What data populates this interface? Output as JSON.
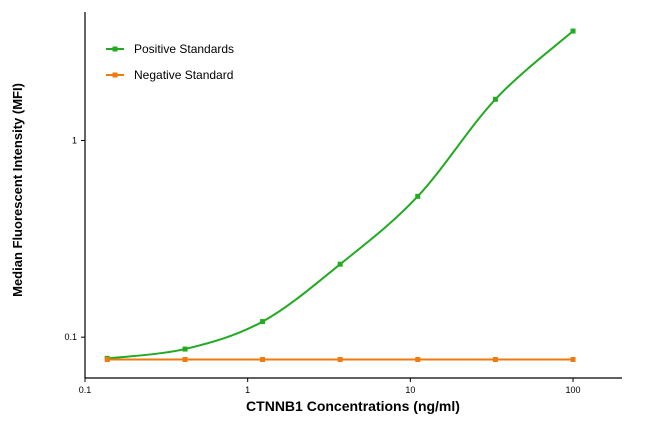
{
  "chart_data": {
    "type": "line",
    "title": "",
    "xlabel": "CTNNB1 Concentrations (ng/ml)",
    "ylabel": "Median Fluorescent Intensity (MFI)",
    "x_scale": "log",
    "y_scale": "log",
    "xlim": [
      0.1,
      200
    ],
    "ylim": [
      0.062,
      4.5
    ],
    "x_ticks": [
      {
        "value": 0.1,
        "label": "0.1"
      },
      {
        "value": 1,
        "label": "1"
      },
      {
        "value": 10,
        "label": "10"
      },
      {
        "value": 100,
        "label": "100"
      }
    ],
    "y_ticks": [
      {
        "value": 0.1,
        "label": "0.1"
      },
      {
        "value": 1,
        "label": "1"
      }
    ],
    "grid": false,
    "legend_position": "top-left",
    "series": [
      {
        "name": "Positive Standards",
        "color": "#22aa22",
        "x": [
          0.137,
          0.412,
          1.235,
          3.704,
          11.11,
          33.33,
          100
        ],
        "y": [
          0.078,
          0.087,
          0.12,
          0.235,
          0.52,
          1.62,
          3.6
        ]
      },
      {
        "name": "Negative Standard",
        "color": "#ee7a10",
        "x": [
          0.137,
          0.412,
          1.235,
          3.704,
          11.11,
          33.33,
          100
        ],
        "y": [
          0.077,
          0.077,
          0.077,
          0.077,
          0.077,
          0.077,
          0.077
        ]
      }
    ]
  }
}
